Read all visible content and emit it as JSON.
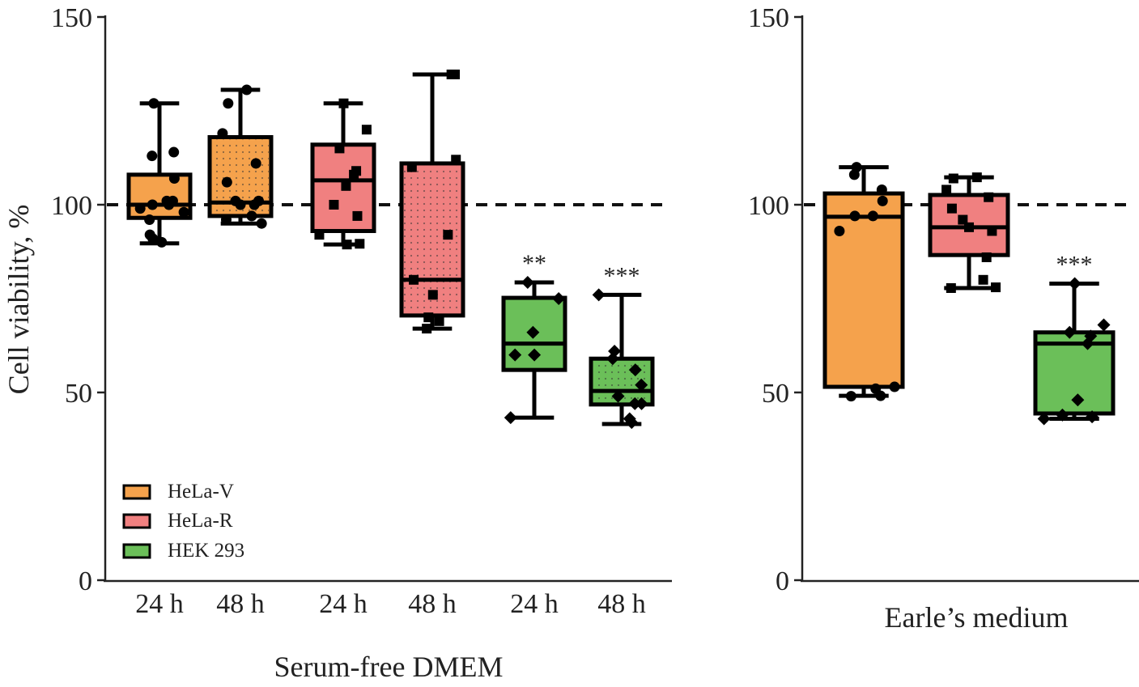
{
  "chart_data": [
    {
      "type": "box",
      "panel": "left",
      "xlabel": "Serum-free DMEM",
      "ylabel": "Cell viability, %",
      "ylim": [
        0,
        150
      ],
      "yticks": [
        0,
        50,
        100,
        150
      ],
      "reference_line": {
        "y": 100,
        "style": "dashed"
      },
      "categories": [
        "24 h",
        "48 h",
        "24 h",
        "48 h",
        "24 h",
        "48 h"
      ],
      "legend": {
        "placement": "bottom-left",
        "entries": [
          {
            "name": "HeLa-V",
            "color": "#F5A24C"
          },
          {
            "name": "HeLa-R",
            "color": "#F08080"
          },
          {
            "name": "HEK 293",
            "color": "#6BBF59"
          }
        ]
      },
      "boxes": [
        {
          "group": "HeLa-V",
          "category": "24 h",
          "color": "#F5A24C",
          "dotted": false,
          "marker": "circle",
          "min": 89.7,
          "q1": 96.5,
          "median": 100.0,
          "q3": 108.0,
          "max": 127.0,
          "points": [
            127,
            113,
            114,
            107,
            101,
            100,
            99,
            98,
            100,
            101,
            96,
            92,
            90,
            91
          ],
          "annotation": ""
        },
        {
          "group": "HeLa-V",
          "category": "48 h",
          "color": "#F5A24C",
          "dotted": true,
          "marker": "circle",
          "min": 95.0,
          "q1": 97.0,
          "median": 100.6,
          "q3": 118.0,
          "max": 130.6,
          "points": [
            130.6,
            127,
            119,
            111,
            106,
            101,
            100,
            101,
            100,
            97,
            95,
            96
          ],
          "annotation": ""
        },
        {
          "group": "HeLa-R",
          "category": "24 h",
          "color": "#F08080",
          "dotted": false,
          "marker": "square",
          "min": 89.4,
          "q1": 93.0,
          "median": 106.5,
          "q3": 116.0,
          "max": 127.0,
          "points": [
            127,
            120,
            115,
            109,
            108,
            105,
            100,
            97,
            92,
            89.4,
            89.6
          ],
          "annotation": ""
        },
        {
          "group": "HeLa-R",
          "category": "48 h",
          "color": "#F08080",
          "dotted": true,
          "marker": "square",
          "min": 67.0,
          "q1": 70.5,
          "median": 80.0,
          "q3": 111.0,
          "max": 134.7,
          "points": [
            134.7,
            134.7,
            112,
            110,
            92,
            80,
            76,
            70,
            69,
            67
          ],
          "annotation": ""
        },
        {
          "group": "HEK 293",
          "category": "24 h",
          "color": "#6BBF59",
          "dotted": false,
          "marker": "diamond",
          "min": 43.3,
          "q1": 56.0,
          "median": 63.0,
          "q3": 75.2,
          "max": 79.3,
          "points": [
            79.3,
            75,
            66,
            60,
            60,
            43.3
          ],
          "annotation": "**"
        },
        {
          "group": "HEK 293",
          "category": "48 h",
          "color": "#6BBF59",
          "dotted": true,
          "marker": "diamond",
          "min": 41.6,
          "q1": 46.8,
          "median": 50.4,
          "q3": 59.0,
          "max": 76.0,
          "points": [
            76,
            61,
            59,
            56,
            52,
            49,
            47,
            47,
            43,
            42
          ],
          "annotation": "***"
        }
      ]
    },
    {
      "type": "box",
      "panel": "right",
      "xlabel": "Earle’s medium",
      "ylabel": "",
      "ylim": [
        0,
        150
      ],
      "yticks": [
        0,
        50,
        100,
        150
      ],
      "reference_line": {
        "y": 100,
        "style": "dashed"
      },
      "categories": [
        "HeLa-V",
        "HeLa-R",
        "HEK 293"
      ],
      "boxes": [
        {
          "group": "HeLa-V",
          "color": "#F5A24C",
          "dotted": false,
          "marker": "circle",
          "min": 49.1,
          "q1": 51.5,
          "median": 96.8,
          "q3": 103.0,
          "max": 110.0,
          "points": [
            110,
            108,
            104,
            101,
            97,
            97,
            93,
            51.5,
            51,
            49.1,
            49
          ],
          "annotation": ""
        },
        {
          "group": "HeLa-R",
          "color": "#F08080",
          "dotted": false,
          "marker": "square",
          "min": 77.8,
          "q1": 86.6,
          "median": 94.0,
          "q3": 102.6,
          "max": 107.3,
          "points": [
            107.3,
            107,
            104,
            102,
            99,
            96,
            94,
            93,
            86,
            80,
            78,
            77.8
          ],
          "annotation": ""
        },
        {
          "group": "HEK 293",
          "color": "#6BBF59",
          "dotted": false,
          "marker": "diamond",
          "min": 43.0,
          "q1": 44.4,
          "median": 63.0,
          "q3": 66.0,
          "max": 79.0,
          "points": [
            79,
            68,
            66,
            65,
            63,
            48,
            44,
            43.5,
            43
          ],
          "annotation": "***"
        }
      ]
    }
  ]
}
